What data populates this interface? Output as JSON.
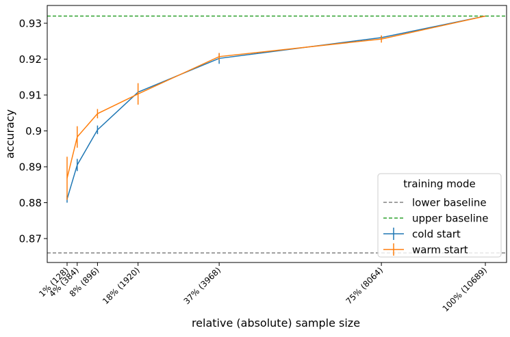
{
  "chart_data": {
    "type": "line",
    "x_label": "relative (absolute) sample size",
    "y_label": "accuracy",
    "x": [
      128,
      384,
      896,
      1920,
      3968,
      8064,
      10689
    ],
    "xlim": [
      -373,
      11225
    ],
    "xticks": [
      {
        "value": 128,
        "label": "1% (128)"
      },
      {
        "value": 384,
        "label": "4% (384)"
      },
      {
        "value": 896,
        "label": "8% (896)"
      },
      {
        "value": 1920,
        "label": "18% (1920)"
      },
      {
        "value": 3968,
        "label": "37% (3968)"
      },
      {
        "value": 8064,
        "label": "75% (8064)"
      },
      {
        "value": 10689,
        "label": "100% (10689)"
      }
    ],
    "ylim": [
      0.86333,
      0.93495
    ],
    "yticks": [
      0.87,
      0.88,
      0.89,
      0.9,
      0.91,
      0.92,
      0.93
    ],
    "reference_lines": [
      {
        "name": "lower baseline",
        "color": "#808080",
        "value": 0.866
      },
      {
        "name": "upper baseline",
        "color": "#2ca02c",
        "value": 0.932
      }
    ],
    "series": [
      {
        "name": "cold start",
        "color": "#1f77b4",
        "values": [
          0.881,
          0.8905,
          0.9003,
          0.9108,
          0.9202,
          0.926,
          0.932
        ],
        "errors": [
          0.001,
          0.0017,
          0.0012,
          0.0005,
          0.0015,
          0.0005,
          0
        ]
      },
      {
        "name": "warm start",
        "color": "#ff7f0e",
        "values": [
          0.8868,
          0.8983,
          0.9048,
          0.9103,
          0.9207,
          0.9256,
          0.932
        ],
        "errors": [
          0.006,
          0.003,
          0.0013,
          0.003,
          0.001,
          0.001,
          0
        ]
      }
    ],
    "legend_title": "training mode",
    "legend_position": "lower right"
  }
}
